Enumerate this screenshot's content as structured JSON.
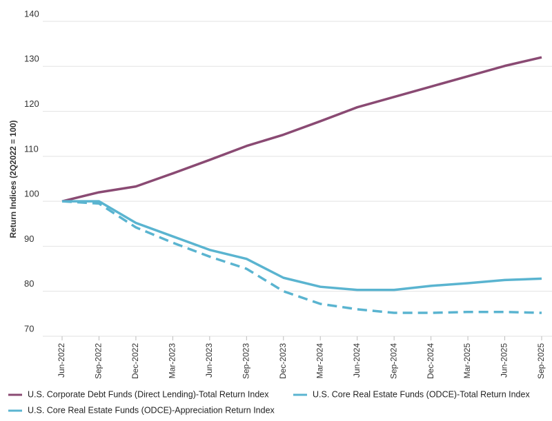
{
  "chart_data": {
    "type": "line",
    "y_label": "Return Indices (2Q2022 = 100)",
    "categories": [
      "Jun-2022",
      "Sep-2022",
      "Dec-2022",
      "Mar-2023",
      "Jun-2023",
      "Sep-2023",
      "Dec-2023",
      "Mar-2024",
      "Jun-2024",
      "Sep-2024",
      "Dec-2024",
      "Mar-2025",
      "Jun-2025",
      "Sep-2025"
    ],
    "series": [
      {
        "name": "U.S. Corporate Debt Funds (Direct Lending)-Total Return Index",
        "color": "#8a4a73",
        "line_style": "solid",
        "values": [
          100,
          102,
          103.3,
          106.2,
          109.2,
          112.3,
          114.8,
          117.8,
          120.9,
          123.2,
          125.5,
          127.8,
          130.1,
          132
        ]
      },
      {
        "name": "U.S. Core Real Estate Funds (ODCE)-Total Return Index",
        "color": "#5ab4d0",
        "line_style": "solid",
        "values": [
          100,
          100,
          95.2,
          92.2,
          89.2,
          87.2,
          83,
          81,
          80.3,
          80.3,
          81.2,
          81.8,
          82.5,
          82.8
        ]
      },
      {
        "name": "U.S. Core Real Estate Funds (ODCE)-Appreciation Return Index",
        "color": "#5ab4d0",
        "line_style": "dashed",
        "values": [
          100,
          99.5,
          94.2,
          90.8,
          87.7,
          85,
          80,
          77.2,
          76,
          75.2,
          75.2,
          75.4,
          75.4,
          75.2
        ]
      }
    ],
    "ylim": [
      70,
      140
    ],
    "yticks": [
      70,
      80,
      90,
      100,
      110,
      120,
      130,
      140
    ],
    "grid": true
  }
}
